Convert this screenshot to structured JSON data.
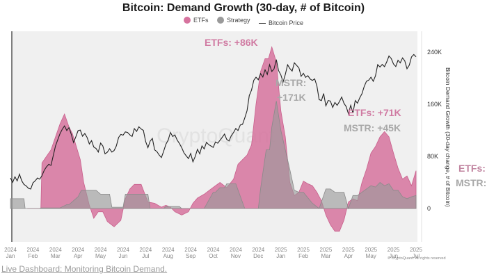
{
  "chart_data": {
    "type": "area",
    "title": "Bitcoin: Demand Growth (30-day, # of Bitcoin)",
    "legend": [
      {
        "name": "ETFs",
        "marker": "dot",
        "color": "#d6739e"
      },
      {
        "name": "Strategy",
        "marker": "dot",
        "color": "#9a9a9a"
      },
      {
        "name": "Bitcoin Price",
        "marker": "line",
        "color": "#222222"
      }
    ],
    "legend_position": "top-center",
    "xlabel": "",
    "ylabel": "Bitcoin Demand Growth (30-day change, # of Bitcoin)",
    "y_axis_side": "right",
    "ylim": [
      -60000,
      305000
    ],
    "yticks": [
      {
        "value": 0,
        "label": "0"
      },
      {
        "value": 80000,
        "label": "80K"
      },
      {
        "value": 160000,
        "label": "160K"
      },
      {
        "value": 240000,
        "label": "240K"
      }
    ],
    "xlim_months": [
      0,
      18.1
    ],
    "xticks": [
      {
        "year": "2024",
        "month": "Jan"
      },
      {
        "year": "2024",
        "month": "Feb"
      },
      {
        "year": "2024",
        "month": "Mar"
      },
      {
        "year": "2024",
        "month": "Apr"
      },
      {
        "year": "2024",
        "month": "May"
      },
      {
        "year": "2024",
        "month": "Jun"
      },
      {
        "year": "2024",
        "month": "Jul"
      },
      {
        "year": "2024",
        "month": "Aug"
      },
      {
        "year": "2024",
        "month": "Sep"
      },
      {
        "year": "2024",
        "month": "Oct"
      },
      {
        "year": "2024",
        "month": "Nov"
      },
      {
        "year": "2024",
        "month": "Dec"
      },
      {
        "year": "2025",
        "month": "Jan"
      },
      {
        "year": "2025",
        "month": "Feb"
      },
      {
        "year": "2025",
        "month": "Mar"
      },
      {
        "year": "2025",
        "month": "Apr"
      },
      {
        "year": "2025",
        "month": "May"
      },
      {
        "year": "2025",
        "month": "Jun"
      },
      {
        "year": "2025",
        "month": "Jul"
      }
    ],
    "grid": false,
    "x_unit": "months since 2024-01",
    "series": [
      {
        "name": "ETFs",
        "type": "area",
        "color": "#d6739e",
        "x": [
          0.75,
          1.35,
          1.4,
          1.6,
          1.8,
          2.0,
          2.2,
          2.4,
          2.6,
          2.75,
          2.9,
          3.1,
          3.25,
          3.5,
          3.7,
          3.9,
          4.1,
          4.3,
          4.6,
          4.9,
          5.1,
          5.3,
          5.5,
          5.8,
          6.1,
          6.4,
          6.7,
          6.9,
          7.1,
          7.3,
          7.6,
          7.9,
          8.1,
          8.3,
          8.6,
          8.9,
          9.1,
          9.3,
          9.6,
          9.9,
          10.1,
          10.3,
          10.5,
          10.7,
          10.9,
          11.1,
          11.3,
          11.45,
          11.6,
          11.8,
          12.0,
          12.2,
          12.4,
          12.6,
          12.8,
          13.0,
          13.2,
          13.4,
          13.6,
          13.8,
          14.0,
          14.2,
          14.4,
          14.6,
          14.8,
          15.0,
          15.2,
          15.4,
          15.6,
          15.8,
          16.0,
          16.2,
          16.4,
          16.6,
          16.8,
          17.0,
          17.2,
          17.4,
          17.6,
          17.8,
          18.0
        ],
        "values": [
          0,
          0,
          70000,
          80000,
          90000,
          110000,
          130000,
          145000,
          125000,
          115000,
          98000,
          75000,
          40000,
          5000,
          -15000,
          -5000,
          -5000,
          -20000,
          -28000,
          -18000,
          15000,
          30000,
          37000,
          37000,
          10000,
          8000,
          2000,
          5000,
          2000,
          -5000,
          -10000,
          -5000,
          8000,
          16000,
          22000,
          30000,
          35000,
          40000,
          32000,
          45000,
          68000,
          75000,
          82000,
          98000,
          160000,
          210000,
          230000,
          230000,
          248000,
          225000,
          150000,
          110000,
          40000,
          20000,
          25000,
          42000,
          38000,
          35000,
          25000,
          12000,
          -10000,
          -25000,
          -35000,
          -35000,
          -18000,
          10000,
          15000,
          12000,
          40000,
          60000,
          85000,
          95000,
          110000,
          118000,
          110000,
          85000,
          62000,
          45000,
          50000,
          35000,
          58000
        ]
      },
      {
        "name": "Strategy",
        "type": "area",
        "color": "#9a9a9a",
        "x": [
          0,
          0.6,
          0.65,
          1.3,
          1.35,
          2.2,
          2.5,
          2.6,
          3.0,
          3.15,
          3.8,
          4.0,
          4.4,
          4.5,
          5.0,
          5.1,
          6.1,
          6.2,
          6.8,
          6.9,
          7.5,
          7.6,
          8.0,
          8.6,
          9.0,
          9.1,
          9.3,
          9.5,
          9.6,
          10.0,
          10.4,
          10.5,
          11.0,
          11.1,
          11.35,
          11.5,
          11.6,
          11.8,
          12.0,
          12.2,
          12.4,
          12.6,
          12.8,
          13.0,
          13.4,
          13.7,
          14.0,
          14.2,
          14.4,
          14.6,
          14.8,
          15.0,
          15.2,
          15.4,
          15.6,
          15.8,
          16.0,
          16.2,
          16.4,
          16.6,
          16.8,
          17.0,
          17.2,
          17.4,
          17.6,
          17.8,
          18.0
        ],
        "values": [
          15000,
          15000,
          0,
          0,
          1000,
          1000,
          6000,
          6000,
          18000,
          28000,
          28000,
          22000,
          22000,
          2000,
          2000,
          22000,
          22000,
          0,
          0,
          3000,
          3000,
          0,
          0,
          0,
          25000,
          25000,
          32000,
          32000,
          38000,
          38000,
          0,
          0,
          0,
          30000,
          90000,
          90000,
          125000,
          165000,
          120000,
          90000,
          60000,
          28000,
          25000,
          25000,
          8000,
          0,
          30000,
          30000,
          25000,
          25000,
          25000,
          0,
          20000,
          20000,
          25000,
          30000,
          35000,
          33000,
          40000,
          35000,
          38000,
          28000,
          28000,
          18000,
          15000,
          18000,
          20000
        ]
      },
      {
        "name": "Bitcoin Price",
        "type": "line",
        "color": "#222222",
        "note": "plotted on hidden price scale (USD), approximate",
        "x": [
          0,
          0.1,
          0.2,
          0.3,
          0.4,
          0.5,
          0.6,
          0.7,
          0.8,
          0.9,
          1.0,
          1.1,
          1.2,
          1.3,
          1.4,
          1.5,
          1.6,
          1.7,
          1.8,
          1.9,
          2.0,
          2.1,
          2.2,
          2.3,
          2.4,
          2.5,
          2.6,
          2.7,
          2.8,
          2.9,
          3.0,
          3.1,
          3.2,
          3.3,
          3.4,
          3.5,
          3.6,
          3.7,
          3.8,
          3.9,
          4.0,
          4.1,
          4.2,
          4.3,
          4.4,
          4.5,
          4.6,
          4.7,
          4.8,
          4.9,
          5.0,
          5.1,
          5.2,
          5.3,
          5.4,
          5.5,
          5.6,
          5.7,
          5.8,
          5.9,
          6.0,
          6.1,
          6.2,
          6.3,
          6.4,
          6.5,
          6.6,
          6.7,
          6.8,
          6.9,
          7.0,
          7.1,
          7.2,
          7.3,
          7.4,
          7.5,
          7.6,
          7.7,
          7.8,
          7.9,
          8.0,
          8.1,
          8.2,
          8.3,
          8.4,
          8.5,
          8.6,
          8.7,
          8.8,
          8.9,
          9.0,
          9.1,
          9.2,
          9.3,
          9.4,
          9.5,
          9.6,
          9.7,
          9.8,
          9.9,
          10.0,
          10.1,
          10.2,
          10.3,
          10.4,
          10.5,
          10.6,
          10.7,
          10.8,
          10.9,
          11.0,
          11.1,
          11.2,
          11.3,
          11.4,
          11.5,
          11.6,
          11.7,
          11.8,
          11.9,
          12.0,
          12.1,
          12.2,
          12.3,
          12.4,
          12.5,
          12.6,
          12.7,
          12.8,
          12.9,
          13.0,
          13.1,
          13.2,
          13.3,
          13.4,
          13.5,
          13.6,
          13.7,
          13.8,
          13.9,
          14.0,
          14.1,
          14.2,
          14.3,
          14.4,
          14.5,
          14.6,
          14.7,
          14.8,
          14.9,
          15.0,
          15.1,
          15.2,
          15.3,
          15.4,
          15.5,
          15.6,
          15.7,
          15.8,
          15.9,
          16.0,
          16.1,
          16.2,
          16.3,
          16.4,
          16.5,
          16.6,
          16.7,
          16.8,
          16.9,
          17.0,
          17.1,
          17.2,
          17.3,
          17.4,
          17.5,
          17.6,
          17.7,
          17.8,
          17.9,
          18.0
        ],
        "values": [
          45000,
          43000,
          46000,
          44000,
          47500,
          44000,
          42000,
          41000,
          39500,
          39000,
          42000,
          43000,
          44500,
          44000,
          46000,
          49000,
          51000,
          52500,
          52000,
          57000,
          62000,
          65000,
          68000,
          70000,
          71500,
          69000,
          70500,
          67000,
          63000,
          66000,
          69500,
          70000,
          67000,
          68500,
          66500,
          63000,
          64500,
          61000,
          60000,
          58000,
          62500,
          61000,
          57000,
          58000,
          60000,
          58500,
          59500,
          62000,
          66500,
          68000,
          67500,
          69000,
          68500,
          67000,
          66000,
          70000,
          68500,
          71000,
          70000,
          69500,
          64000,
          61000,
          64500,
          66000,
          60000,
          59000,
          57000,
          55500,
          58500,
          62000,
          64000,
          68000,
          66000,
          67000,
          64500,
          63000,
          61000,
          58500,
          57000,
          55500,
          58000,
          53500,
          56000,
          59500,
          57000,
          61000,
          59500,
          63000,
          62000,
          61500,
          61000,
          64000,
          63500,
          65000,
          66500,
          68000,
          65000,
          64000,
          66500,
          68000,
          70000,
          69000,
          72000,
          72500,
          76000,
          80000,
          88000,
          91000,
          96000,
          97500,
          96000,
          99000,
          97000,
          100500,
          98000,
          103000,
          99500,
          101000,
          106000,
          100500,
          98500,
          95000,
          99000,
          104000,
          102000,
          100500,
          104500,
          103000,
          101500,
          97000,
          98500,
          96500,
          97500,
          96000,
          95500,
          96500,
          93000,
          86000,
          85500,
          89000,
          82500,
          85000,
          84500,
          81000,
          83500,
          82000,
          84000,
          86500,
          83500,
          82000,
          78500,
          83000,
          79000,
          85500,
          84000,
          86500,
          88500,
          92000,
          94500,
          95000,
          96500,
          94500,
          97500,
          103500,
          102500,
          104000,
          103000,
          105500,
          108500,
          107000,
          104000,
          102500,
          105500,
          104000,
          106500,
          105000,
          101000,
          103000,
          107500,
          109000,
          108000
        ]
      }
    ],
    "annotations": [
      {
        "text": "ETFs: +86K",
        "color": "#d07aa2",
        "near": "Dec 2024 peak"
      },
      {
        "text": "MSTR:",
        "color": "#a8a8a8",
        "near": "Dec 2024 peak"
      },
      {
        "text": "+171K",
        "color": "#a8a8a8",
        "near": "Dec 2024 peak"
      },
      {
        "text": "ETFs: +71K",
        "color": "#d07aa2",
        "near": "May 2025 peak"
      },
      {
        "text": "MSTR: +45K",
        "color": "#a8a8a8",
        "near": "May 2025 peak"
      },
      {
        "text": "ETFs:",
        "color": "#c0839f",
        "near": "right edge"
      },
      {
        "text": "MSTR:",
        "color": "#a8a8a8",
        "near": "right edge"
      }
    ],
    "watermark": "CryptoQuant"
  },
  "footer": {
    "link_text": "Live Dashboard: Monitoring Bitcoin Demand.",
    "copyright": "© CryptoQuant. All rights reserved"
  }
}
